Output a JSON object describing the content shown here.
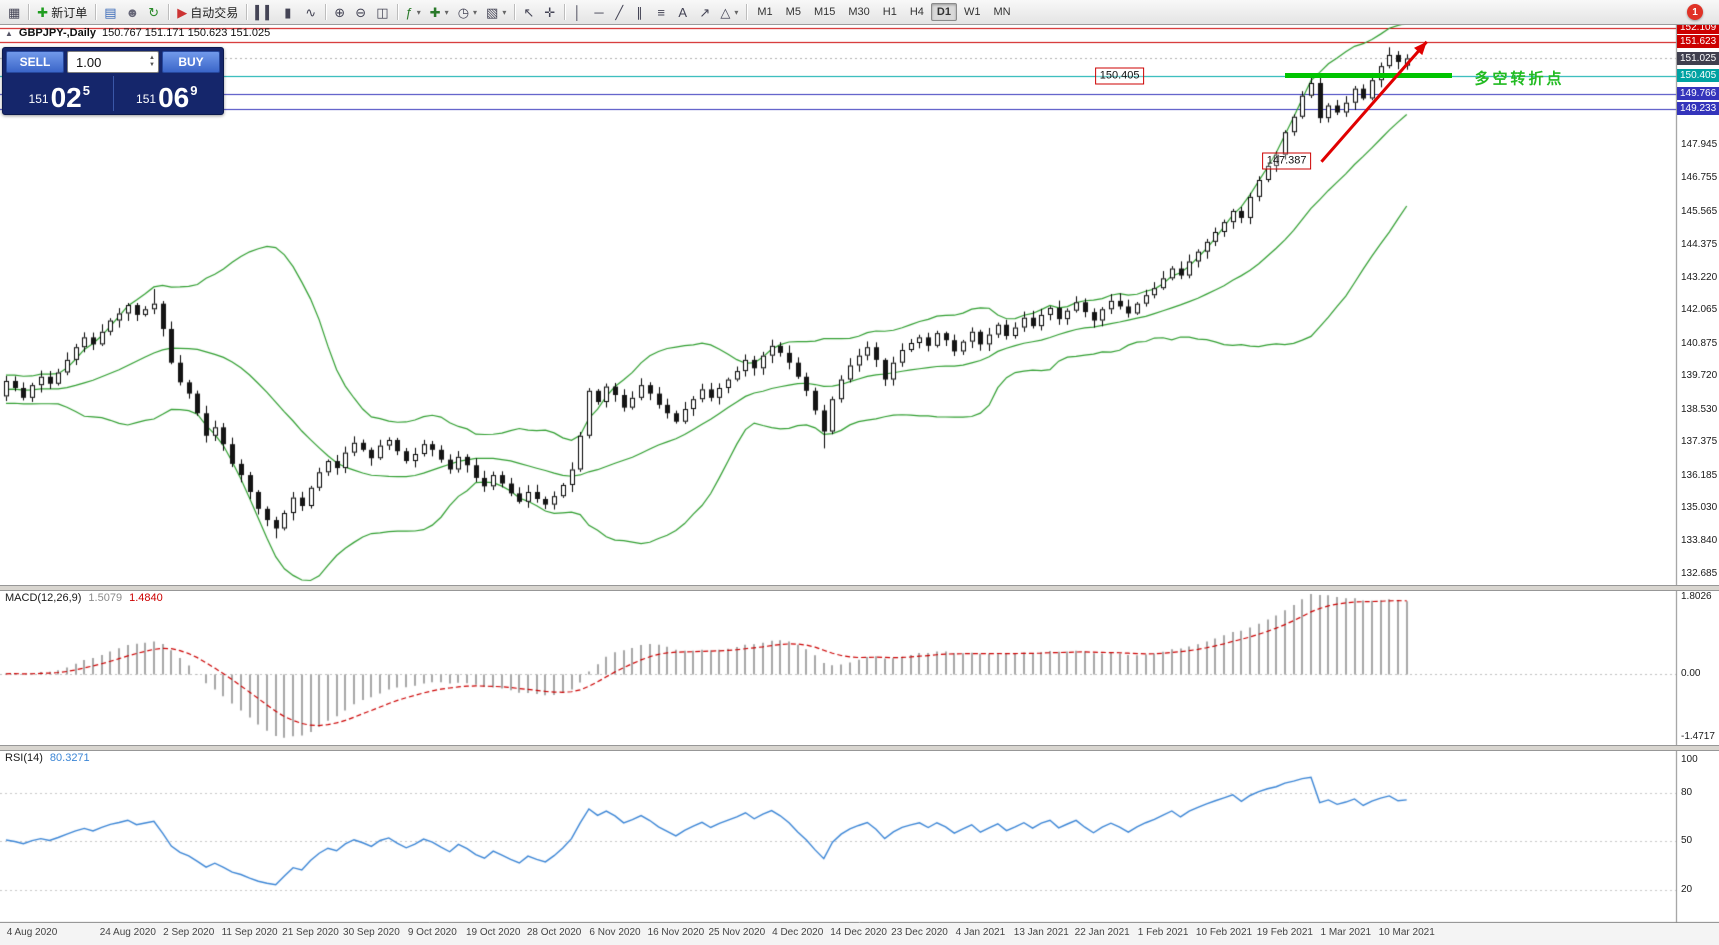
{
  "toolbar": {
    "groups": [
      {
        "items": [
          {
            "name": "new-chart-icon",
            "glyph": "▦",
            "color": "#445"
          }
        ]
      },
      {
        "items": [
          {
            "name": "new-order-button",
            "glyph": "✚",
            "color": "#1f9d1f",
            "label": "新订单"
          }
        ]
      },
      {
        "items": [
          {
            "name": "market-watch-icon",
            "glyph": "▤",
            "color": "#3a6ab8"
          },
          {
            "name": "navigator-icon",
            "glyph": "☻",
            "color": "#667"
          },
          {
            "name": "refresh-icon",
            "glyph": "↻",
            "color": "#2a8a2a"
          }
        ]
      },
      {
        "items": [
          {
            "name": "autotrading-button",
            "glyph": "▶",
            "color": "#cc3333",
            "label": "自动交易"
          }
        ]
      },
      {
        "items": [
          {
            "name": "bar-chart-icon",
            "glyph": "▍▍",
            "color": "#445"
          },
          {
            "name": "candlestick-chart-icon",
            "glyph": "▮",
            "color": "#445"
          },
          {
            "name": "line-chart-icon",
            "glyph": "∿",
            "color": "#445"
          }
        ]
      },
      {
        "items": [
          {
            "name": "zoom-in-icon",
            "glyph": "⊕",
            "color": "#445"
          },
          {
            "name": "zoom-out-icon",
            "glyph": "⊖",
            "color": "#445"
          },
          {
            "name": "tile-windows-icon",
            "glyph": "◫",
            "color": "#445"
          }
        ]
      },
      {
        "items": [
          {
            "name": "indicators-icon",
            "glyph": "ƒ",
            "color": "#2a7a2a",
            "caret": true
          },
          {
            "name": "add-chart-icon",
            "glyph": "✚",
            "color": "#2a7a2a",
            "caret": true
          },
          {
            "name": "periods-icon",
            "glyph": "◷",
            "color": "#445",
            "caret": true
          },
          {
            "name": "templates-icon",
            "glyph": "▧",
            "color": "#445",
            "caret": true
          }
        ]
      },
      {
        "items": [
          {
            "name": "cursor-icon",
            "glyph": "↖",
            "color": "#445"
          },
          {
            "name": "crosshair-icon",
            "glyph": "✛",
            "color": "#445"
          }
        ]
      },
      {
        "items": [
          {
            "name": "vertical-line-icon",
            "glyph": "│",
            "color": "#445"
          },
          {
            "name": "horizontal-line-icon",
            "glyph": "─",
            "color": "#445"
          },
          {
            "name": "trendline-icon",
            "glyph": "╱",
            "color": "#445"
          },
          {
            "name": "channel-icon",
            "glyph": "∥",
            "color": "#445"
          },
          {
            "name": "fibonacci-icon",
            "glyph": "≡",
            "color": "#445"
          },
          {
            "name": "text-tool-icon",
            "glyph": "A",
            "color": "#445"
          },
          {
            "name": "arrows-tool-icon",
            "glyph": "↗",
            "color": "#445"
          },
          {
            "name": "shapes-tool-icon",
            "glyph": "△",
            "color": "#445",
            "caret": true
          }
        ]
      }
    ],
    "timeframes": {
      "options": [
        "M1",
        "M5",
        "M15",
        "M30",
        "H1",
        "H4",
        "D1",
        "W1",
        "MN"
      ],
      "active": "D1"
    },
    "notification_badge": "1"
  },
  "chart_window": {
    "collapse_icon": "▲",
    "title": "GBPJPY-,Daily",
    "ohlc": "150.767 151.171 150.623 151.025"
  },
  "trade_panel": {
    "sell_label": "SELL",
    "buy_label": "BUY",
    "volume": "1.00",
    "sell_price": {
      "prefix": "151",
      "main": "02",
      "sup": "5"
    },
    "buy_price": {
      "prefix": "151",
      "main": "06",
      "sup": "9"
    }
  },
  "chart_data": {
    "type": "candlestick",
    "symbol": "GBPJPY-",
    "timeframe": "Daily",
    "last_candle": {
      "open": 150.767,
      "high": 151.171,
      "low": 150.623,
      "close": 151.025
    },
    "preroll_closes": [
      139.0,
      139.3,
      138.8,
      139.1,
      139.4,
      139.0,
      138.7,
      139.2,
      139.5,
      139.1,
      138.8,
      139.3,
      139.6,
      139.2,
      138.9,
      139.4,
      139.1,
      138.7,
      139.0,
      139.3,
      138.9,
      139.2,
      139.6,
      139.3,
      139.0,
      139.4,
      139.8,
      139.5,
      139.1,
      139.3,
      139.0,
      138.8,
      139.2,
      139.5,
      139.2,
      138.9,
      139.1,
      139.4,
      139.2,
      139.0
    ],
    "closes": [
      139.55,
      139.3,
      138.95,
      139.4,
      139.7,
      139.45,
      139.85,
      140.3,
      140.75,
      141.1,
      140.85,
      141.3,
      141.7,
      141.95,
      142.25,
      141.9,
      142.1,
      142.3,
      141.4,
      140.2,
      139.5,
      139.1,
      138.4,
      137.6,
      137.9,
      137.3,
      136.6,
      136.2,
      135.6,
      135.0,
      134.6,
      134.3,
      134.85,
      135.4,
      135.1,
      135.75,
      136.3,
      136.7,
      136.45,
      137.0,
      137.35,
      137.1,
      136.8,
      137.25,
      137.45,
      137.05,
      136.7,
      136.95,
      137.3,
      137.1,
      136.75,
      136.4,
      136.85,
      136.55,
      136.1,
      135.8,
      136.2,
      135.9,
      135.55,
      135.25,
      135.6,
      135.35,
      135.15,
      135.45,
      135.85,
      136.4,
      137.6,
      139.2,
      138.8,
      139.35,
      139.05,
      138.6,
      138.95,
      139.4,
      139.1,
      138.7,
      138.4,
      138.1,
      138.55,
      138.9,
      139.25,
      138.95,
      139.3,
      139.6,
      139.9,
      140.3,
      140.0,
      140.45,
      140.8,
      140.55,
      140.2,
      139.7,
      139.2,
      138.5,
      137.75,
      138.9,
      139.6,
      140.1,
      140.45,
      140.75,
      140.3,
      139.6,
      140.2,
      140.65,
      140.9,
      141.1,
      140.8,
      141.25,
      141.0,
      140.6,
      140.95,
      141.3,
      140.85,
      141.2,
      141.55,
      141.15,
      141.45,
      141.8,
      141.5,
      141.9,
      142.15,
      141.75,
      142.05,
      142.35,
      142.0,
      141.7,
      142.1,
      142.4,
      142.2,
      141.95,
      142.3,
      142.6,
      142.85,
      143.2,
      143.55,
      143.3,
      143.8,
      144.15,
      144.5,
      144.85,
      145.2,
      145.6,
      145.35,
      146.1,
      146.7,
      147.2,
      147.6,
      148.4,
      148.95,
      149.7,
      150.15,
      148.9,
      149.35,
      149.1,
      149.45,
      149.95,
      149.6,
      150.25,
      150.75,
      151.15,
      150.9,
      151.03
    ],
    "overrides": {
      "17": {
        "high": 142.82
      },
      "31": {
        "low": 133.95
      },
      "94": {
        "low": 137.15
      },
      "150": {
        "high": 150.45
      },
      "159": {
        "high": 151.42
      },
      "161": {
        "open": 150.767,
        "high": 151.171,
        "low": 150.623,
        "close": 151.025
      }
    },
    "bollinger": {
      "period": 20,
      "deviation": 2
    },
    "colors": {
      "up": "#ffffff",
      "down": "#141414",
      "outline": "#000000",
      "bollinger": "#2f9e2f",
      "macd_hist": "#a8a8a8",
      "macd_signal": "#cc0000",
      "rsi": "#3c86d6"
    }
  },
  "axes": {
    "price_labels": [
      "147.945",
      "146.755",
      "145.565",
      "144.375",
      "143.220",
      "142.065",
      "140.875",
      "139.720",
      "138.530",
      "137.375",
      "136.185",
      "135.030",
      "133.840",
      "132.685"
    ],
    "date_labels": [
      {
        "idx": 0,
        "text": "4 Aug 2020"
      },
      {
        "idx": 14,
        "text": "24 Aug 2020"
      },
      {
        "idx": 21,
        "text": "2 Sep 2020"
      },
      {
        "idx": 28,
        "text": "11 Sep 2020"
      },
      {
        "idx": 35,
        "text": "21 Sep 2020"
      },
      {
        "idx": 42,
        "text": "30 Sep 2020"
      },
      {
        "idx": 49,
        "text": "9 Oct 2020"
      },
      {
        "idx": 56,
        "text": "19 Oct 2020"
      },
      {
        "idx": 63,
        "text": "28 Oct 2020"
      },
      {
        "idx": 70,
        "text": "6 Nov 2020"
      },
      {
        "idx": 77,
        "text": "16 Nov 2020"
      },
      {
        "idx": 84,
        "text": "25 Nov 2020"
      },
      {
        "idx": 91,
        "text": "4 Dec 2020"
      },
      {
        "idx": 98,
        "text": "14 Dec 2020"
      },
      {
        "idx": 105,
        "text": "23 Dec 2020"
      },
      {
        "idx": 112,
        "text": "4 Jan 2021"
      },
      {
        "idx": 119,
        "text": "13 Jan 2021"
      },
      {
        "idx": 126,
        "text": "22 Jan 2021"
      },
      {
        "idx": 133,
        "text": "1 Feb 2021"
      },
      {
        "idx": 140,
        "text": "10 Feb 2021"
      },
      {
        "idx": 147,
        "text": "19 Feb 2021"
      },
      {
        "idx": 154,
        "text": "1 Mar 2021"
      },
      {
        "idx": 161,
        "text": "10 Mar 2021"
      }
    ]
  },
  "indicators": {
    "macd": {
      "label": "MACD(12,26,9)",
      "value_main": "1.5079",
      "value_signal": "1.4840",
      "axis": [
        "1.8026",
        "0.00",
        "-1.4717"
      ],
      "scale": {
        "min": -1.65,
        "max": 2.0
      }
    },
    "rsi": {
      "label": "RSI(14)",
      "value": "80.3271",
      "axis": [
        "100",
        "80",
        "50",
        "20"
      ],
      "levels": [
        80,
        50,
        20
      ],
      "scale": {
        "min": 0,
        "max": 107
      }
    }
  },
  "annotations": {
    "hlines": [
      {
        "price": 152.109,
        "label": "152.109",
        "color": "#cc0000",
        "chip": "#cc0000",
        "style": "solid"
      },
      {
        "price": 151.623,
        "label": "151.623",
        "color": "#cc0000",
        "chip": "#cc0000",
        "style": "solid"
      },
      {
        "price": 151.025,
        "label": "151.025",
        "color": "#b0b0b0",
        "chip": "#3f3f4e",
        "style": "dotted"
      },
      {
        "price": 150.405,
        "label": "150.405",
        "color": "#00aaaa",
        "chip": "#00a2a2",
        "style": "solid"
      },
      {
        "price": 149.766,
        "label": "149.766",
        "color": "#3434bb",
        "chip": "#3434bb",
        "style": "solid"
      },
      {
        "price": 149.233,
        "label": "149.233",
        "color": "#3434bb",
        "chip": "#3434bb",
        "style": "solid"
      }
    ],
    "green_segment": {
      "price": 150.405,
      "x_start_idx": 147,
      "x_end_idx": 166.2,
      "color": "#00c400"
    },
    "arrow": {
      "x1_idx": 151.2,
      "price1": 147.35,
      "x2_idx": 163.3,
      "price2": 151.62,
      "color": "#e00000"
    },
    "price_boxes": [
      {
        "text": "150.405",
        "x_idx": 128,
        "price": 150.4,
        "color": "#cc0000"
      },
      {
        "text": "147.387",
        "x_idx": 147.2,
        "price": 147.36,
        "color": "#cc0000"
      }
    ],
    "text_label": {
      "text": "多空转折点",
      "x_idx": 168.8,
      "price": 150.32,
      "color": "#22bb22"
    }
  }
}
